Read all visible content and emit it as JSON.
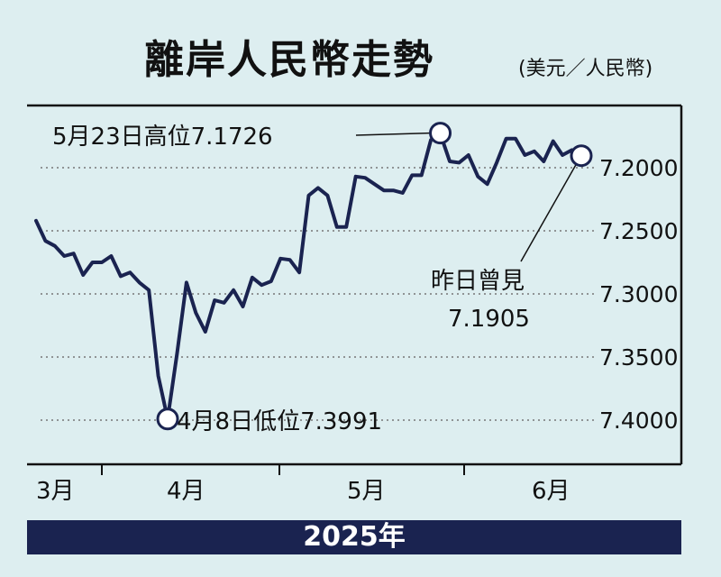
{
  "header": {
    "title": "離岸人民幣走勢",
    "unit": "(美元／人民幣)"
  },
  "year_label": "2025年",
  "chart_data": {
    "type": "line",
    "title": "離岸人民幣走勢",
    "subtitle": "(美元／人民幣)",
    "y_axis": {
      "inverted": true,
      "ylim": [
        7.16,
        7.43
      ],
      "ticks": [
        "7.2000",
        "7.2500",
        "7.3000",
        "7.3500",
        "7.4000"
      ],
      "grid": true,
      "position": "right"
    },
    "x_axis": {
      "months": [
        "3月",
        "4月",
        "5月",
        "6月"
      ]
    },
    "series": [
      {
        "color": "#1a2350",
        "values": [
          7.242,
          7.258,
          7.262,
          7.27,
          7.268,
          7.285,
          7.275,
          7.275,
          7.27,
          7.286,
          7.283,
          7.291,
          7.297,
          7.365,
          7.399,
          7.347,
          7.291,
          7.315,
          7.33,
          7.305,
          7.307,
          7.297,
          7.31,
          7.287,
          7.293,
          7.29,
          7.272,
          7.273,
          7.283,
          7.222,
          7.216,
          7.222,
          7.247,
          7.247,
          7.207,
          7.208,
          7.213,
          7.218,
          7.218,
          7.22,
          7.206,
          7.206,
          7.178,
          7.173,
          7.195,
          7.196,
          7.19,
          7.207,
          7.213,
          7.196,
          7.177,
          7.177,
          7.19,
          7.187,
          7.195,
          7.179,
          7.19,
          7.186,
          7.191
        ]
      }
    ],
    "annotations": {
      "high": {
        "text": "5月23日高位7.1726",
        "value": 7.1726
      },
      "low": {
        "text": "4月8日低位7.3991",
        "value": 7.3991
      },
      "latest_line1": "昨日曾見",
      "latest_line2": "7.1905",
      "latest_value": 7.1905
    }
  }
}
